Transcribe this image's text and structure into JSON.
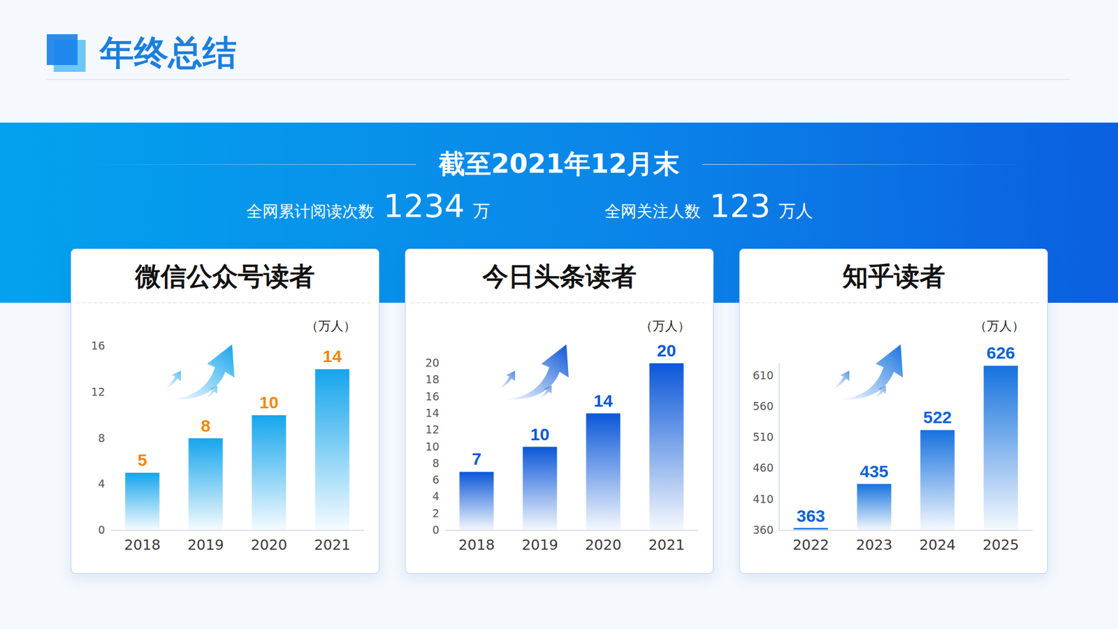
{
  "header": {
    "title": "年终总结"
  },
  "banner": {
    "date": "截至2021年12月末",
    "stats": [
      {
        "label": "全网累计阅读次数",
        "value": 1234,
        "unit": "万"
      },
      {
        "label": "全网关注人数",
        "value": 123,
        "unit": "万人"
      }
    ]
  },
  "chart_data": [
    {
      "type": "bar",
      "title": "微信公众号读者",
      "y_label": "（万人）",
      "categories": [
        "2018",
        "2019",
        "2020",
        "2021"
      ],
      "values": [
        5,
        8,
        10,
        14
      ],
      "color": "#15a5ec",
      "ylim": [
        0,
        16
      ],
      "yticks": [
        0,
        4,
        8,
        12,
        16
      ],
      "grid": false,
      "data_labels": true
    },
    {
      "type": "bar",
      "title": "今日头条读者",
      "y_label": "（万人）",
      "categories": [
        "2018",
        "2019",
        "2020",
        "2021"
      ],
      "values": [
        7,
        10,
        14,
        20
      ],
      "color": "#0b57d8",
      "ylim": [
        0,
        20
      ],
      "yticks": [
        0,
        2,
        4,
        6,
        8,
        10,
        12,
        14,
        16,
        18,
        20
      ],
      "grid": false,
      "data_labels": true
    },
    {
      "type": "bar",
      "title": "知乎读者",
      "y_label": "（万人）",
      "categories": [
        "2022",
        "2023",
        "2024",
        "2025"
      ],
      "values": [
        363,
        435,
        522,
        626
      ],
      "color": "#1672de",
      "ylim": [
        360,
        630
      ],
      "yticks": [
        360,
        410,
        460,
        510,
        560,
        610
      ],
      "grid": false,
      "data_labels": true
    }
  ]
}
